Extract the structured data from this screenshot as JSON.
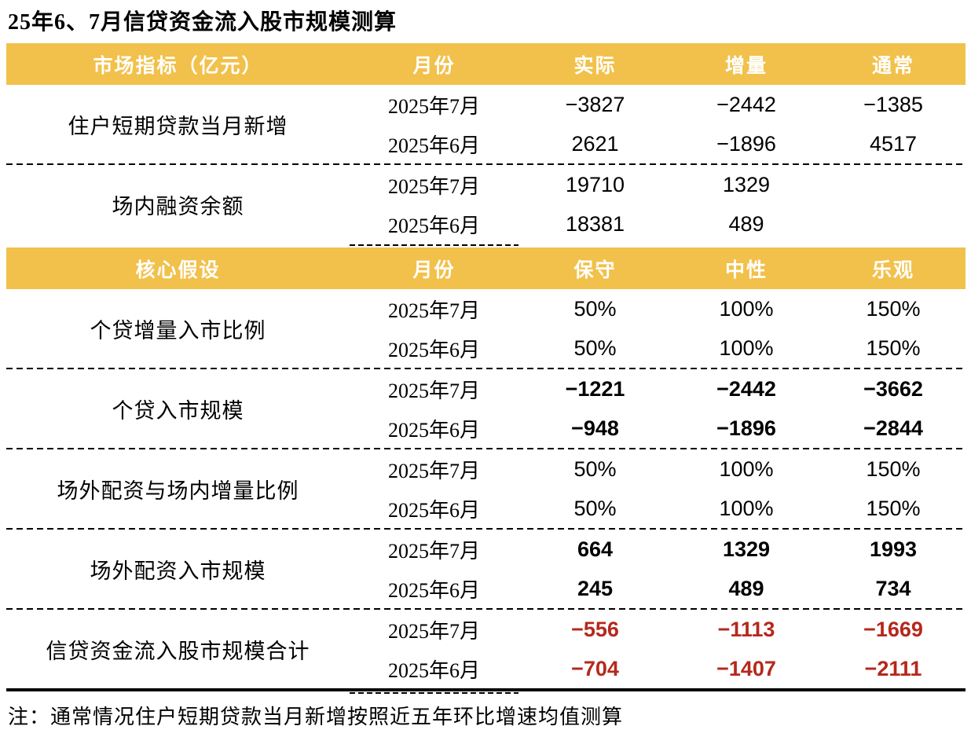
{
  "page": {
    "title": "25年6、7月信贷资金流入股市规模测算",
    "note": "注：通常情况住户短期贷款当月新增按照近五年环比增速均值测算"
  },
  "colors": {
    "header_band": "#F2C14B",
    "header_text": "#FFFFFF",
    "total_red": "#B5281C",
    "body_text": "#000000"
  },
  "table1": {
    "headers": [
      "市场指标（亿元）",
      "月份",
      "实际",
      "增量",
      "通常"
    ],
    "groups": [
      {
        "indicator": "住户短期贷款当月新增",
        "rows": [
          {
            "month": "2025年7月",
            "values": [
              "−3827",
              "−2442",
              "−1385"
            ]
          },
          {
            "month": "2025年6月",
            "values": [
              "2621",
              "−1896",
              "4517"
            ]
          }
        ]
      },
      {
        "indicator": "场内融资余额",
        "rows": [
          {
            "month": "2025年7月",
            "values": [
              "19710",
              "1329",
              ""
            ]
          },
          {
            "month": "2025年6月",
            "values": [
              "18381",
              "489",
              ""
            ]
          }
        ]
      }
    ]
  },
  "table2": {
    "headers": [
      "核心假设",
      "月份",
      "保守",
      "中性",
      "乐观"
    ],
    "groups": [
      {
        "indicator": "个贷增量入市比例",
        "rows": [
          {
            "month": "2025年7月",
            "values": [
              "50%",
              "100%",
              "150%"
            ]
          },
          {
            "month": "2025年6月",
            "values": [
              "50%",
              "100%",
              "150%"
            ]
          }
        ]
      },
      {
        "indicator": "个贷入市规模",
        "rows": [
          {
            "month": "2025年7月",
            "values": [
              "−1221",
              "−2442",
              "−3662"
            ]
          },
          {
            "month": "2025年6月",
            "values": [
              "−948",
              "−1896",
              "−2844"
            ]
          }
        ]
      },
      {
        "indicator": "场外配资与场内增量比例",
        "rows": [
          {
            "month": "2025年7月",
            "values": [
              "50%",
              "100%",
              "150%"
            ]
          },
          {
            "month": "2025年6月",
            "values": [
              "50%",
              "100%",
              "150%"
            ]
          }
        ]
      },
      {
        "indicator": "场外配资入市规模",
        "rows": [
          {
            "month": "2025年7月",
            "values": [
              "664",
              "1329",
              "1993"
            ]
          },
          {
            "month": "2025年6月",
            "values": [
              "245",
              "489",
              "734"
            ]
          }
        ]
      },
      {
        "indicator": "信贷资金流入股市规模合计",
        "rows": [
          {
            "month": "2025年7月",
            "values": [
              "−556",
              "−1113",
              "−1669"
            ]
          },
          {
            "month": "2025年6月",
            "values": [
              "−704",
              "−1407",
              "−2111"
            ]
          }
        ]
      }
    ]
  },
  "chart_data": [
    {
      "type": "table",
      "title": "25年6、7月信贷资金流入股市规模测算",
      "columns": [
        "市场指标（亿元）",
        "月份",
        "实际",
        "增量",
        "通常"
      ],
      "rows": [
        [
          "住户短期贷款当月新增",
          "2025年7月",
          -3827,
          -2442,
          -1385
        ],
        [
          "住户短期贷款当月新增",
          "2025年6月",
          2621,
          -1896,
          4517
        ],
        [
          "场内融资余额",
          "2025年7月",
          19710,
          1329,
          null
        ],
        [
          "场内融资余额",
          "2025年6月",
          18381,
          489,
          null
        ]
      ]
    },
    {
      "type": "table",
      "columns": [
        "核心假设",
        "月份",
        "保守",
        "中性",
        "乐观"
      ],
      "rows": [
        [
          "个贷增量入市比例",
          "2025年7月",
          "50%",
          "100%",
          "150%"
        ],
        [
          "个贷增量入市比例",
          "2025年6月",
          "50%",
          "100%",
          "150%"
        ],
        [
          "个贷入市规模",
          "2025年7月",
          -1221,
          -2442,
          -3662
        ],
        [
          "个贷入市规模",
          "2025年6月",
          -948,
          -1896,
          -2844
        ],
        [
          "场外配资与场内增量比例",
          "2025年7月",
          "50%",
          "100%",
          "150%"
        ],
        [
          "场外配资与场内增量比例",
          "2025年6月",
          "50%",
          "100%",
          "150%"
        ],
        [
          "场外配资入市规模",
          "2025年7月",
          664,
          1329,
          1993
        ],
        [
          "场外配资入市规模",
          "2025年6月",
          245,
          489,
          734
        ],
        [
          "信贷资金流入股市规模合计",
          "2025年7月",
          -556,
          -1113,
          -1669
        ],
        [
          "信贷资金流入股市规模合计",
          "2025年6月",
          -704,
          -1407,
          -2111
        ]
      ],
      "footnote": "注：通常情况住户短期贷款当月新增按照近五年环比增速均值测算"
    }
  ]
}
